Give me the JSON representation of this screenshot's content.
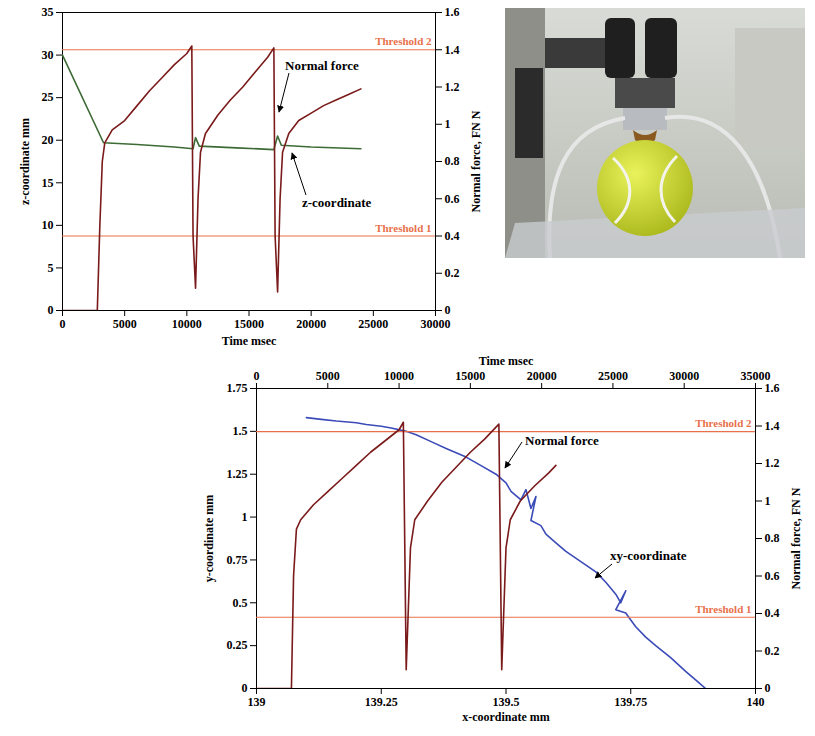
{
  "chart_data": [
    {
      "type": "line",
      "x_label": "Time msec",
      "y_label": "z-coordinate mm",
      "y2_label": "Normal force, FN N",
      "xlim": [
        0,
        30000
      ],
      "xticks": [
        0,
        5000,
        10000,
        15000,
        20000,
        25000,
        30000
      ],
      "ylim": [
        0,
        35
      ],
      "yticks": [
        0,
        5,
        10,
        15,
        20,
        25,
        30,
        35
      ],
      "y2lim": [
        0,
        1.6
      ],
      "y2ticks": [
        0,
        0.2,
        0.4,
        0.6,
        0.8,
        1,
        1.2,
        1.4,
        1.6
      ],
      "grid": false,
      "series": [
        {
          "name": "Normal force",
          "color": "#7a1a1a",
          "axis": "y2",
          "x": [
            0,
            2800,
            3000,
            3200,
            3400,
            4000,
            5000,
            6000,
            7000,
            8000,
            9000,
            10000,
            10400,
            10500,
            10700,
            10900,
            11100,
            11500,
            12500,
            13500,
            14500,
            15500,
            16500,
            17000,
            17100,
            17300,
            17500,
            17700,
            18200,
            19000,
            20000,
            21000,
            22000,
            23000,
            24000
          ],
          "values": [
            0,
            0,
            0.45,
            0.8,
            0.9,
            0.97,
            1.02,
            1.1,
            1.18,
            1.25,
            1.32,
            1.38,
            1.42,
            0.4,
            0.12,
            0.6,
            0.85,
            0.95,
            1.05,
            1.13,
            1.2,
            1.28,
            1.36,
            1.41,
            0.4,
            0.1,
            0.6,
            0.85,
            0.95,
            1.02,
            1.06,
            1.1,
            1.13,
            1.16,
            1.19
          ]
        },
        {
          "name": "z-coordinate",
          "color": "#3d6b35",
          "axis": "y",
          "x": [
            0,
            3300,
            6000,
            9000,
            10500,
            10700,
            11000,
            14000,
            17000,
            17300,
            17600,
            20000,
            24000
          ],
          "values": [
            30,
            19.7,
            19.5,
            19.2,
            19,
            20.3,
            19.3,
            19.1,
            18.9,
            20.5,
            19.4,
            19.2,
            19
          ]
        }
      ],
      "thresholds": [
        {
          "name": "Threshold 2",
          "value": 1.4,
          "axis": "y2",
          "color": "#e8704a"
        },
        {
          "name": "Threshold 1",
          "value": 0.4,
          "axis": "y2",
          "color": "#e8704a"
        }
      ]
    },
    {
      "type": "line",
      "x_label": "x-coordinate mm",
      "x2_label": "Time msec",
      "y_label": "y-coordinate mm",
      "y2_label": "Normal force, FN N",
      "xlim": [
        139,
        140
      ],
      "xticks": [
        139,
        139.25,
        139.5,
        139.75,
        140
      ],
      "x2lim": [
        0,
        35000
      ],
      "x2ticks": [
        0,
        5000,
        10000,
        15000,
        20000,
        25000,
        30000,
        35000
      ],
      "ylim": [
        0,
        1.75
      ],
      "yticks": [
        0,
        0.25,
        0.5,
        0.75,
        1,
        1.25,
        1.5,
        1.75
      ],
      "y2lim": [
        0,
        1.6
      ],
      "y2ticks": [
        0,
        0.2,
        0.4,
        0.6,
        0.8,
        1,
        1.2,
        1.4,
        1.6
      ],
      "grid": false,
      "series": [
        {
          "name": "xy-coordinate",
          "color": "#3b4bb8",
          "axis": "y",
          "x": [
            139.1,
            139.13,
            139.16,
            139.2,
            139.22,
            139.25,
            139.27,
            139.3,
            139.32,
            139.35,
            139.38,
            139.42,
            139.45,
            139.48,
            139.5,
            139.51,
            139.53,
            139.54,
            139.55,
            139.56,
            139.55,
            139.57,
            139.58,
            139.6,
            139.62,
            139.65,
            139.68,
            139.7,
            139.72,
            139.73,
            139.74,
            139.72,
            139.74,
            139.75,
            139.76,
            139.78,
            139.8,
            139.83,
            139.86,
            139.88,
            139.9
          ],
          "values": [
            1.58,
            1.57,
            1.56,
            1.55,
            1.54,
            1.53,
            1.52,
            1.5,
            1.48,
            1.44,
            1.4,
            1.35,
            1.3,
            1.25,
            1.2,
            1.15,
            1.1,
            1.16,
            1.05,
            1.12,
            0.98,
            0.95,
            0.9,
            0.85,
            0.8,
            0.74,
            0.68,
            0.62,
            0.55,
            0.5,
            0.57,
            0.46,
            0.44,
            0.4,
            0.36,
            0.3,
            0.25,
            0.18,
            0.1,
            0.05,
            0
          ]
        },
        {
          "name": "Normal force",
          "color": "#7a1a1a",
          "axis": "y2",
          "x2": [
            0,
            2450,
            2600,
            2800,
            3100,
            4000,
            5000,
            6000,
            7000,
            8000,
            9000,
            10000,
            10300,
            10500,
            10800,
            11100,
            12000,
            13000,
            14000,
            15000,
            16000,
            17000,
            17200,
            17500,
            17800,
            18500,
            19500,
            20500,
            21000
          ],
          "values": [
            0,
            0,
            0.6,
            0.85,
            0.9,
            0.98,
            1.05,
            1.12,
            1.19,
            1.26,
            1.32,
            1.38,
            1.42,
            0.1,
            0.75,
            0.9,
            1.0,
            1.1,
            1.18,
            1.26,
            1.33,
            1.41,
            0.1,
            0.75,
            0.9,
            1.0,
            1.08,
            1.15,
            1.19
          ]
        }
      ],
      "thresholds": [
        {
          "name": "Threshold 2",
          "value": 1.37,
          "axis": "y2",
          "color": "#e8704a"
        },
        {
          "name": "Threshold 1",
          "value": 0.38,
          "axis": "y2",
          "color": "#e8704a"
        }
      ]
    }
  ]
}
